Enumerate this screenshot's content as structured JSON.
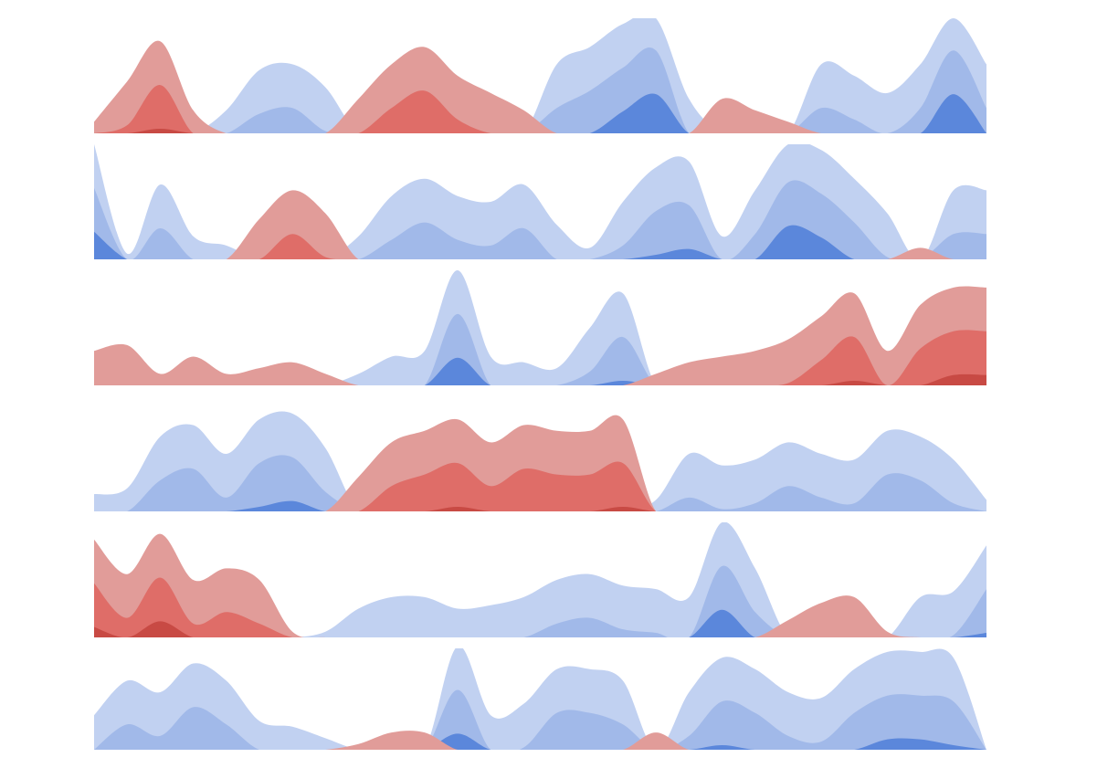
{
  "chart_data": {
    "type": "horizon",
    "categories": [
      null,
      null,
      null,
      null,
      null,
      null,
      null,
      null,
      null,
      null,
      null,
      null,
      null,
      null,
      null,
      null,
      null,
      null,
      null,
      null,
      null,
      null,
      null,
      null,
      null,
      null,
      null,
      null
    ],
    "series": [
      {
        "values": [
          -0.1,
          -0.45,
          -0.8,
          -0.2,
          0.2,
          0.55,
          0.6,
          0.4,
          -0.3,
          -0.6,
          -0.75,
          -0.5,
          -0.35,
          -0.2,
          0.6,
          0.75,
          0.95,
          1.1,
          0.3,
          -0.3,
          -0.2,
          -0.1,
          0.6,
          0.5,
          0.35,
          0.6,
          1.1,
          0.6
        ]
      },
      {
        "values": [
          1.0,
          0.05,
          0.65,
          0.2,
          0.12,
          -0.35,
          -0.6,
          -0.4,
          0.2,
          0.55,
          0.7,
          0.55,
          0.5,
          0.65,
          0.3,
          0.1,
          0.5,
          0.8,
          0.85,
          0.2,
          0.6,
          1.05,
          0.95,
          0.7,
          0.4,
          -0.1,
          0.6,
          0.6
        ]
      },
      {
        "values": [
          -0.3,
          -0.35,
          -0.1,
          -0.25,
          -0.1,
          -0.15,
          -0.2,
          -0.1,
          0.1,
          0.25,
          0.3,
          1.0,
          0.25,
          0.2,
          0.15,
          0.5,
          0.8,
          -0.1,
          -0.2,
          -0.25,
          -0.3,
          -0.4,
          -0.6,
          -0.8,
          -0.3,
          -0.7,
          -0.85,
          -0.85
        ]
      },
      {
        "values": [
          0.15,
          0.2,
          0.65,
          0.75,
          0.5,
          0.8,
          0.85,
          0.55,
          -0.3,
          -0.6,
          -0.7,
          -0.8,
          -0.6,
          -0.75,
          -0.7,
          -0.7,
          -0.8,
          0.1,
          0.5,
          0.4,
          0.45,
          0.6,
          0.5,
          0.45,
          0.7,
          0.65,
          0.45,
          0.1
        ]
      },
      {
        "values": [
          -0.85,
          -0.55,
          -0.9,
          -0.5,
          -0.6,
          -0.5,
          -0.05,
          0.05,
          0.25,
          0.35,
          0.35,
          0.25,
          0.28,
          0.35,
          0.5,
          0.55,
          0.45,
          0.42,
          0.35,
          1.0,
          0.6,
          -0.15,
          -0.3,
          -0.35,
          -0.05,
          0.35,
          0.4,
          0.8
        ]
      },
      {
        "values": [
          0.3,
          0.6,
          0.5,
          0.75,
          0.6,
          0.25,
          0.2,
          0.1,
          -0.05,
          -0.15,
          -0.15,
          0.9,
          0.3,
          0.4,
          0.7,
          0.7,
          0.6,
          -0.15,
          0.5,
          0.8,
          0.7,
          0.5,
          0.45,
          0.7,
          0.85,
          0.85,
          0.8,
          0
        ]
      }
    ],
    "colors": {
      "positive": [
        "#c1d1f1",
        "#a1b9e9",
        "#5b87db"
      ],
      "negative": [
        "#e19c99",
        "#df6d68",
        "#c84a44"
      ]
    }
  }
}
